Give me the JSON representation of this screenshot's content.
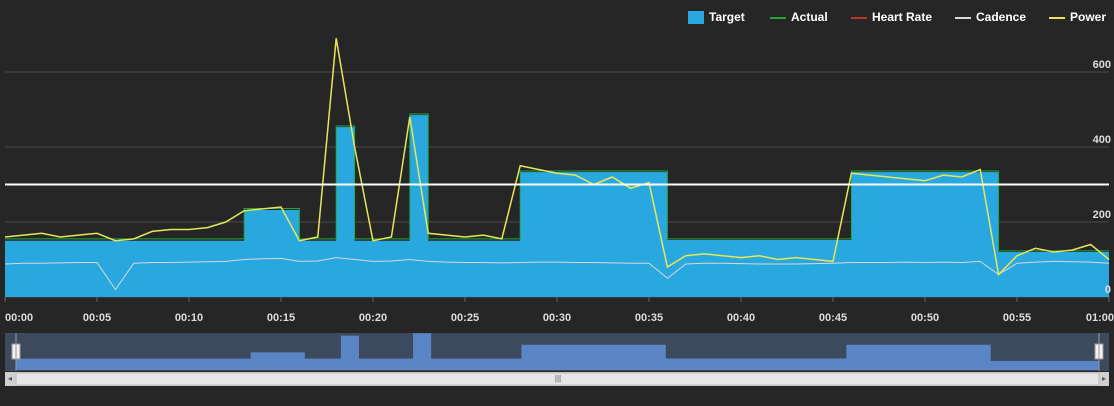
{
  "chart_data": {
    "type": "line",
    "x": [
      0,
      1,
      2,
      3,
      4,
      5,
      6,
      7,
      8,
      9,
      10,
      11,
      12,
      13,
      14,
      15,
      16,
      17,
      18,
      19,
      20,
      21,
      22,
      23,
      24,
      25,
      26,
      27,
      28,
      29,
      30,
      31,
      32,
      33,
      34,
      35,
      36,
      37,
      38,
      39,
      40,
      41,
      42,
      43,
      44,
      45,
      46,
      47,
      48,
      49,
      50,
      51,
      52,
      53,
      54,
      55,
      56,
      57,
      58,
      59,
      60
    ],
    "xlim": [
      0,
      60
    ],
    "xticks": [
      {
        "value": 0,
        "label": "00:00"
      },
      {
        "value": 5,
        "label": "00:05"
      },
      {
        "value": 10,
        "label": "00:10"
      },
      {
        "value": 15,
        "label": "00:15"
      },
      {
        "value": 20,
        "label": "00:20"
      },
      {
        "value": 25,
        "label": "00:25"
      },
      {
        "value": 30,
        "label": "00:30"
      },
      {
        "value": 35,
        "label": "00:35"
      },
      {
        "value": 40,
        "label": "00:40"
      },
      {
        "value": 45,
        "label": "00:45"
      },
      {
        "value": 50,
        "label": "00:50"
      },
      {
        "value": 55,
        "label": "00:55"
      },
      {
        "value": 60,
        "label": "01:00"
      }
    ],
    "ylim": [
      0,
      792
    ],
    "yticks": [
      0,
      200,
      400,
      600
    ],
    "grid": true,
    "legend": "top-right",
    "plot_line": {
      "value": 300,
      "color": "#ffffff"
    },
    "series": [
      {
        "name": "Target",
        "color": "#29a8e0",
        "style": "area",
        "step": true,
        "values": [
          150,
          150,
          150,
          150,
          150,
          150,
          150,
          150,
          150,
          150,
          150,
          150,
          150,
          232,
          232,
          232,
          150,
          150,
          453,
          150,
          150,
          150,
          485,
          150,
          150,
          150,
          150,
          150,
          333,
          333,
          333,
          333,
          333,
          333,
          333,
          333,
          152,
          152,
          152,
          152,
          152,
          152,
          152,
          152,
          152,
          152,
          333,
          333,
          333,
          333,
          333,
          333,
          333,
          333,
          120,
          120,
          120,
          120,
          120,
          120,
          120
        ]
      },
      {
        "name": "Actual",
        "color": "#22a63c",
        "style": "line",
        "step": true,
        "values": [
          155,
          155,
          155,
          155,
          155,
          155,
          155,
          155,
          155,
          155,
          155,
          155,
          155,
          236,
          236,
          236,
          155,
          155,
          456,
          155,
          155,
          155,
          488,
          155,
          155,
          155,
          155,
          155,
          336,
          336,
          336,
          336,
          336,
          336,
          336,
          336,
          155,
          155,
          155,
          155,
          155,
          155,
          155,
          155,
          155,
          155,
          336,
          336,
          336,
          336,
          336,
          336,
          336,
          336,
          123,
          123,
          123,
          123,
          123,
          123,
          123
        ]
      },
      {
        "name": "Heart Rate",
        "color": "#c0302a",
        "style": "line",
        "step": false,
        "values": [
          null,
          null,
          null,
          null,
          null,
          null,
          null,
          null,
          null,
          null,
          null,
          null,
          null,
          null,
          null,
          null,
          null,
          null,
          null,
          null,
          null,
          null,
          null,
          null,
          null,
          null,
          null,
          null,
          null,
          null,
          null,
          null,
          null,
          null,
          null,
          null,
          null,
          null,
          null,
          null,
          null,
          null,
          null,
          null,
          null,
          null,
          null,
          null,
          null,
          null,
          null,
          null,
          null,
          null,
          null,
          null,
          null,
          null,
          null,
          null,
          null
        ]
      },
      {
        "name": "Cadence",
        "color": "#d8d8d8",
        "style": "line",
        "step": false,
        "values": [
          88,
          90,
          90,
          91,
          92,
          92,
          20,
          90,
          92,
          92,
          93,
          94,
          95,
          100,
          102,
          103,
          95,
          96,
          105,
          100,
          95,
          96,
          100,
          95,
          93,
          92,
          92,
          91,
          92,
          93,
          93,
          92,
          92,
          91,
          90,
          90,
          50,
          88,
          90,
          90,
          89,
          88,
          88,
          88,
          89,
          90,
          92,
          92,
          92,
          93,
          92,
          93,
          92,
          95,
          60,
          90,
          93,
          95,
          94,
          93,
          90
        ]
      },
      {
        "name": "Power",
        "color": "#e6e65a",
        "style": "line",
        "step": false,
        "values": [
          160,
          165,
          170,
          160,
          165,
          170,
          150,
          155,
          175,
          180,
          180,
          185,
          200,
          230,
          235,
          240,
          150,
          160,
          690,
          400,
          150,
          160,
          480,
          170,
          165,
          160,
          165,
          155,
          350,
          340,
          330,
          325,
          300,
          320,
          290,
          305,
          80,
          110,
          115,
          110,
          105,
          110,
          100,
          105,
          100,
          95,
          330,
          325,
          320,
          315,
          310,
          325,
          320,
          340,
          60,
          110,
          130,
          120,
          125,
          140,
          100
        ]
      }
    ]
  }
}
